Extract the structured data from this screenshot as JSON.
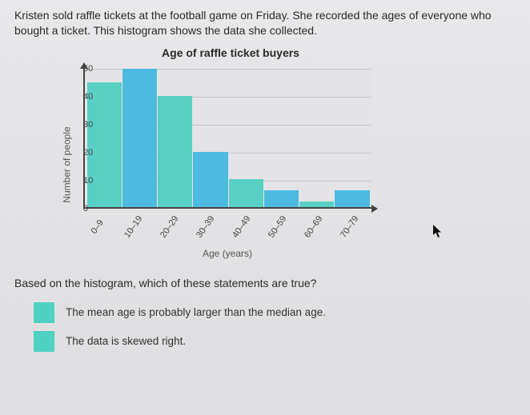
{
  "intro": "Kristen sold raffle tickets at the football game on Friday. She recorded the ages of everyone who bought a ticket. This histogram shows the data she collected.",
  "chart": {
    "type": "histogram",
    "title": "Age of raffle ticket buyers",
    "ylabel": "Number of people",
    "xlabel": "Age (years)",
    "ylim": [
      0,
      50
    ],
    "ytick_step": 10,
    "yticks": [
      0,
      10,
      20,
      30,
      40,
      50
    ],
    "categories": [
      "0–9",
      "10–19",
      "20–29",
      "30–39",
      "40–49",
      "50–59",
      "60–69",
      "70–79"
    ],
    "values": [
      45,
      50,
      40,
      20,
      10,
      6,
      2,
      6
    ],
    "bar_colors": [
      "#58d0c3",
      "#4dbbe0",
      "#58d0c3",
      "#4dbbe0",
      "#58d0c3",
      "#4dbbe0",
      "#58d0c3",
      "#4dbbe0"
    ],
    "label_fontsize": 12,
    "tick_fontsize": 11,
    "grid_color": "#c6c6ca",
    "axis_color": "#444444",
    "background_color": "#e4e4e6"
  },
  "question": "Based on the histogram, which of these statements are true?",
  "options": [
    {
      "text": "The mean age is probably larger than the median age."
    },
    {
      "text": "The data is skewed right."
    }
  ],
  "swatch_color": "#4fd2c2"
}
